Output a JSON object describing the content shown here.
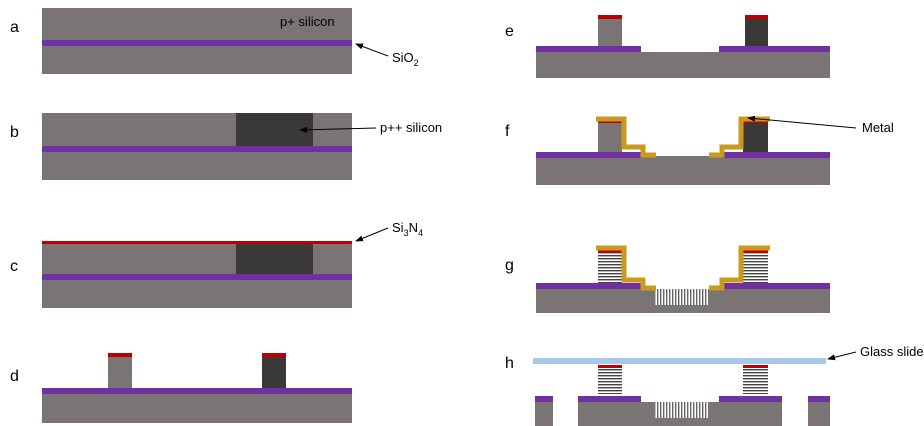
{
  "panels": [
    "a",
    "b",
    "c",
    "d",
    "e",
    "f",
    "g",
    "h"
  ],
  "labels": {
    "p_silicon": "p+ silicon",
    "sio2": {
      "text": "SiO",
      "sub": "2"
    },
    "pp_silicon": "p++ silicon",
    "si3n4": {
      "parts": [
        "Si",
        "3",
        "N",
        "4"
      ]
    },
    "metal": "Metal",
    "glass_slide": "Glass slide"
  }
}
